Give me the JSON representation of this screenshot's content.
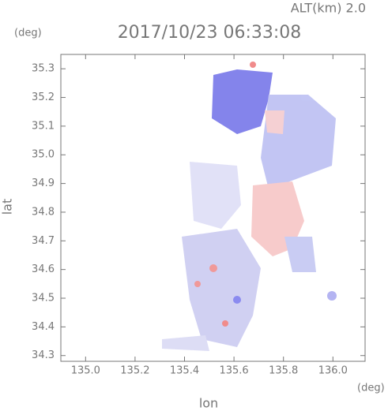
{
  "chart_data": {
    "type": "map",
    "title": "2017/10/23 06:33:08",
    "subtitle": "ALT(km) 2.0",
    "y_unit": "(deg)",
    "x_unit": "(deg)",
    "xlabel": "lon",
    "ylabel": "lat",
    "xlim": [
      134.9,
      136.13
    ],
    "ylim": [
      34.28,
      35.35
    ],
    "xticks": [
      {
        "value": 135,
        "label": "135.0"
      },
      {
        "value": 135.2,
        "label": "135.2"
      },
      {
        "value": 135.4,
        "label": "135.4"
      },
      {
        "value": 135.6,
        "label": "135.6"
      },
      {
        "value": 135.8,
        "label": "135.8"
      },
      {
        "value": 136,
        "label": "136.0"
      }
    ],
    "yticks": [
      34.3,
      34.4,
      34.5,
      34.6,
      34.7,
      34.8,
      34.9,
      {
        "value": 35,
        "label": "35.0"
      },
      35.1,
      35.2,
      35.3
    ]
  }
}
